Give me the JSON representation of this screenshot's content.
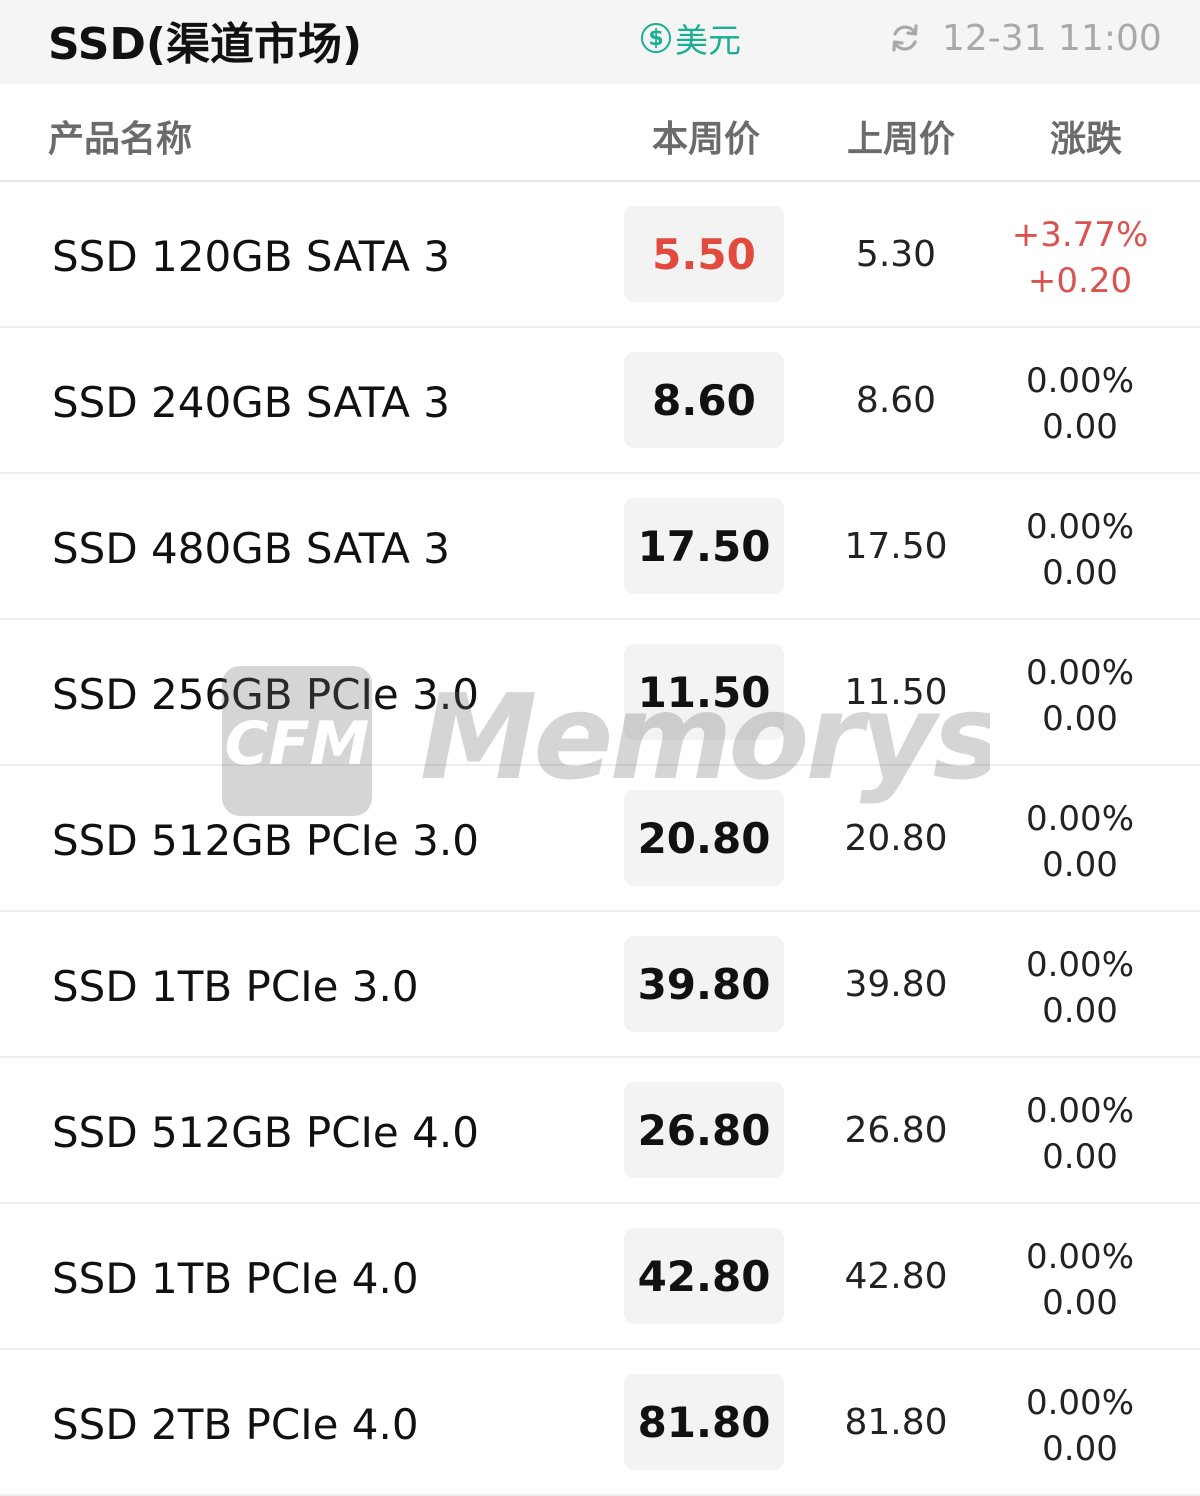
{
  "header": {
    "title": "SSD(渠道市场)",
    "currency_label": "美元",
    "currency_icon": "dollar-coin-icon",
    "updated_time": "12-31 11:00",
    "refresh_icon": "refresh-icon"
  },
  "columns": {
    "name": "产品名称",
    "this_week": "本周价",
    "last_week": "上周价",
    "change": "涨跌"
  },
  "colors": {
    "up": "#e34a3e",
    "accent": "#1aae93",
    "muted": "#a9a9a9"
  },
  "rows": [
    {
      "name": "SSD 120GB SATA 3",
      "price": "5.50",
      "prev": "5.30",
      "pct": "+3.77%",
      "delta": "+0.20",
      "trend": "up"
    },
    {
      "name": "SSD 240GB SATA 3",
      "price": "8.60",
      "prev": "8.60",
      "pct": "0.00%",
      "delta": "0.00",
      "trend": "flat"
    },
    {
      "name": "SSD 480GB SATA 3",
      "price": "17.50",
      "prev": "17.50",
      "pct": "0.00%",
      "delta": "0.00",
      "trend": "flat"
    },
    {
      "name": "SSD 256GB PCIe 3.0",
      "price": "11.50",
      "prev": "11.50",
      "pct": "0.00%",
      "delta": "0.00",
      "trend": "flat"
    },
    {
      "name": "SSD 512GB PCIe 3.0",
      "price": "20.80",
      "prev": "20.80",
      "pct": "0.00%",
      "delta": "0.00",
      "trend": "flat"
    },
    {
      "name": "SSD 1TB PCIe 3.0",
      "price": "39.80",
      "prev": "39.80",
      "pct": "0.00%",
      "delta": "0.00",
      "trend": "flat"
    },
    {
      "name": "SSD 512GB PCIe 4.0",
      "price": "26.80",
      "prev": "26.80",
      "pct": "0.00%",
      "delta": "0.00",
      "trend": "flat"
    },
    {
      "name": "SSD 1TB PCIe 4.0",
      "price": "42.80",
      "prev": "42.80",
      "pct": "0.00%",
      "delta": "0.00",
      "trend": "flat"
    },
    {
      "name": "SSD 2TB PCIe 4.0",
      "price": "81.80",
      "prev": "81.80",
      "pct": "0.00%",
      "delta": "0.00",
      "trend": "flat"
    }
  ],
  "watermark": {
    "logo_text": "CFM",
    "brand_text": "Memorys"
  }
}
